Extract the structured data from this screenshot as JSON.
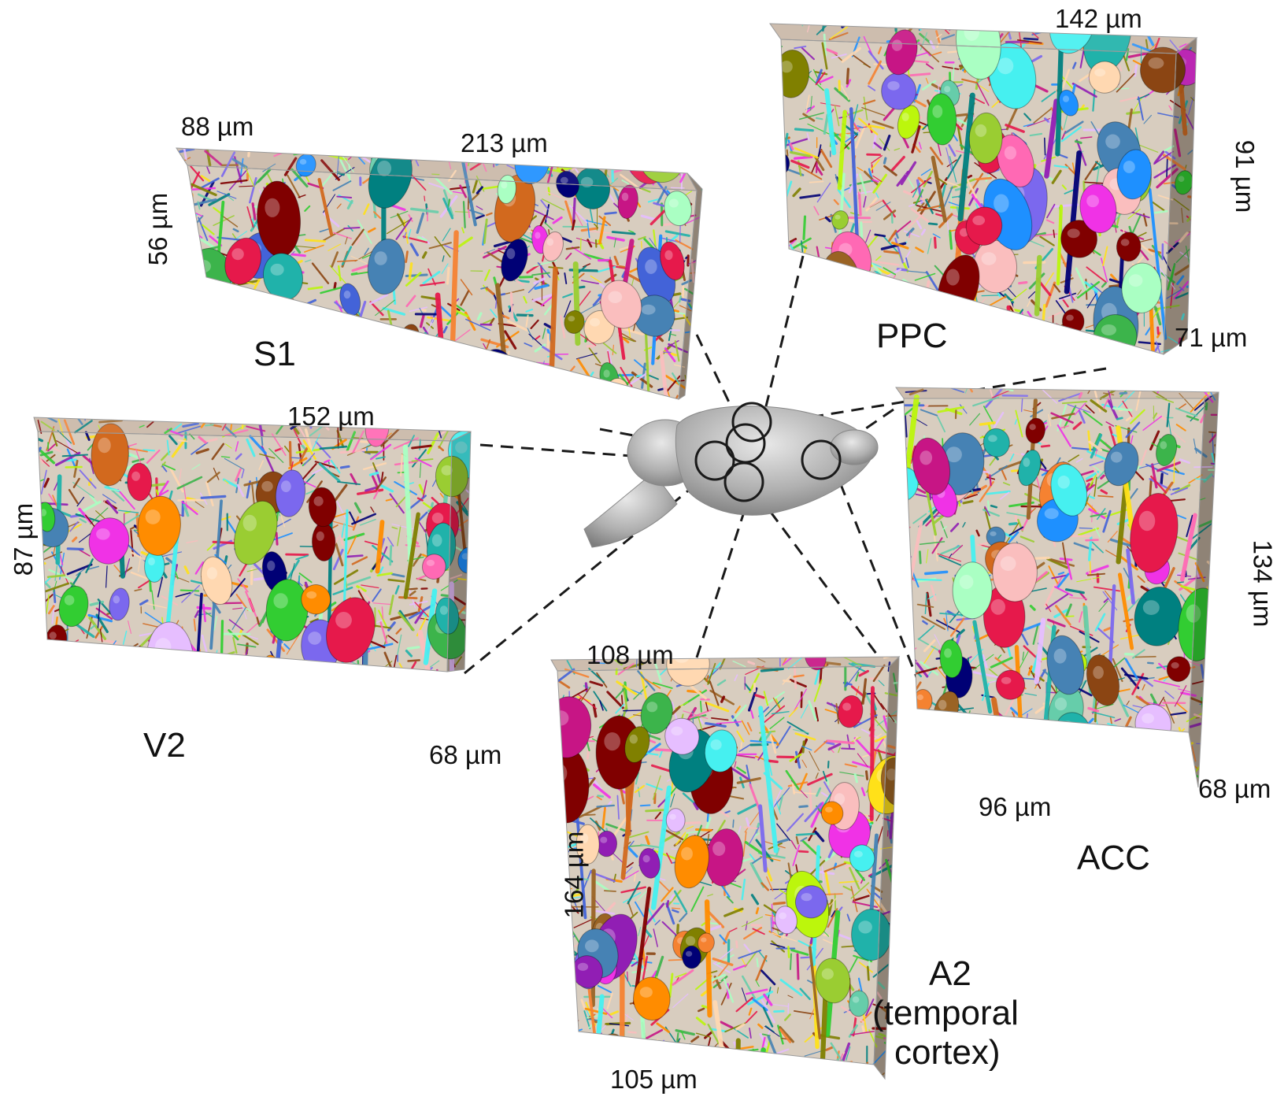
{
  "regions": [
    {
      "id": "s1",
      "name": "S1",
      "dims": [
        "88 µm",
        "213 µm",
        "56 µm"
      ]
    },
    {
      "id": "ppc",
      "name": "PPC",
      "dims": [
        "142 µm",
        "91 µm",
        "71 µm"
      ]
    },
    {
      "id": "v2",
      "name": "V2",
      "dims": [
        "152 µm",
        "87 µm",
        "68 µm"
      ]
    },
    {
      "id": "acc",
      "name": "ACC",
      "dims": [
        "134 µm",
        "96 µm",
        "68 µm"
      ]
    },
    {
      "id": "a2",
      "name_lines": [
        "A2",
        "(temporal",
        "cortex)"
      ],
      "dims": [
        "108 µm",
        "164 µm",
        "105 µm"
      ]
    }
  ],
  "palette": [
    "#e6194b",
    "#3cb44b",
    "#ffe119",
    "#4363d8",
    "#f58231",
    "#911eb4",
    "#46f0f0",
    "#f032e6",
    "#bcf60c",
    "#fabebe",
    "#008080",
    "#e6beff",
    "#9a6324",
    "#800000",
    "#aaffc3",
    "#808000",
    "#ffd8b1",
    "#000075",
    "#7b68ee",
    "#20b2aa",
    "#ff69b4",
    "#1e90ff",
    "#ff8c00",
    "#32cd32",
    "#8b4513",
    "#66cdaa",
    "#c71585",
    "#4682b4",
    "#d2691e",
    "#9acd32"
  ],
  "brain_color": "#b0b0b0"
}
